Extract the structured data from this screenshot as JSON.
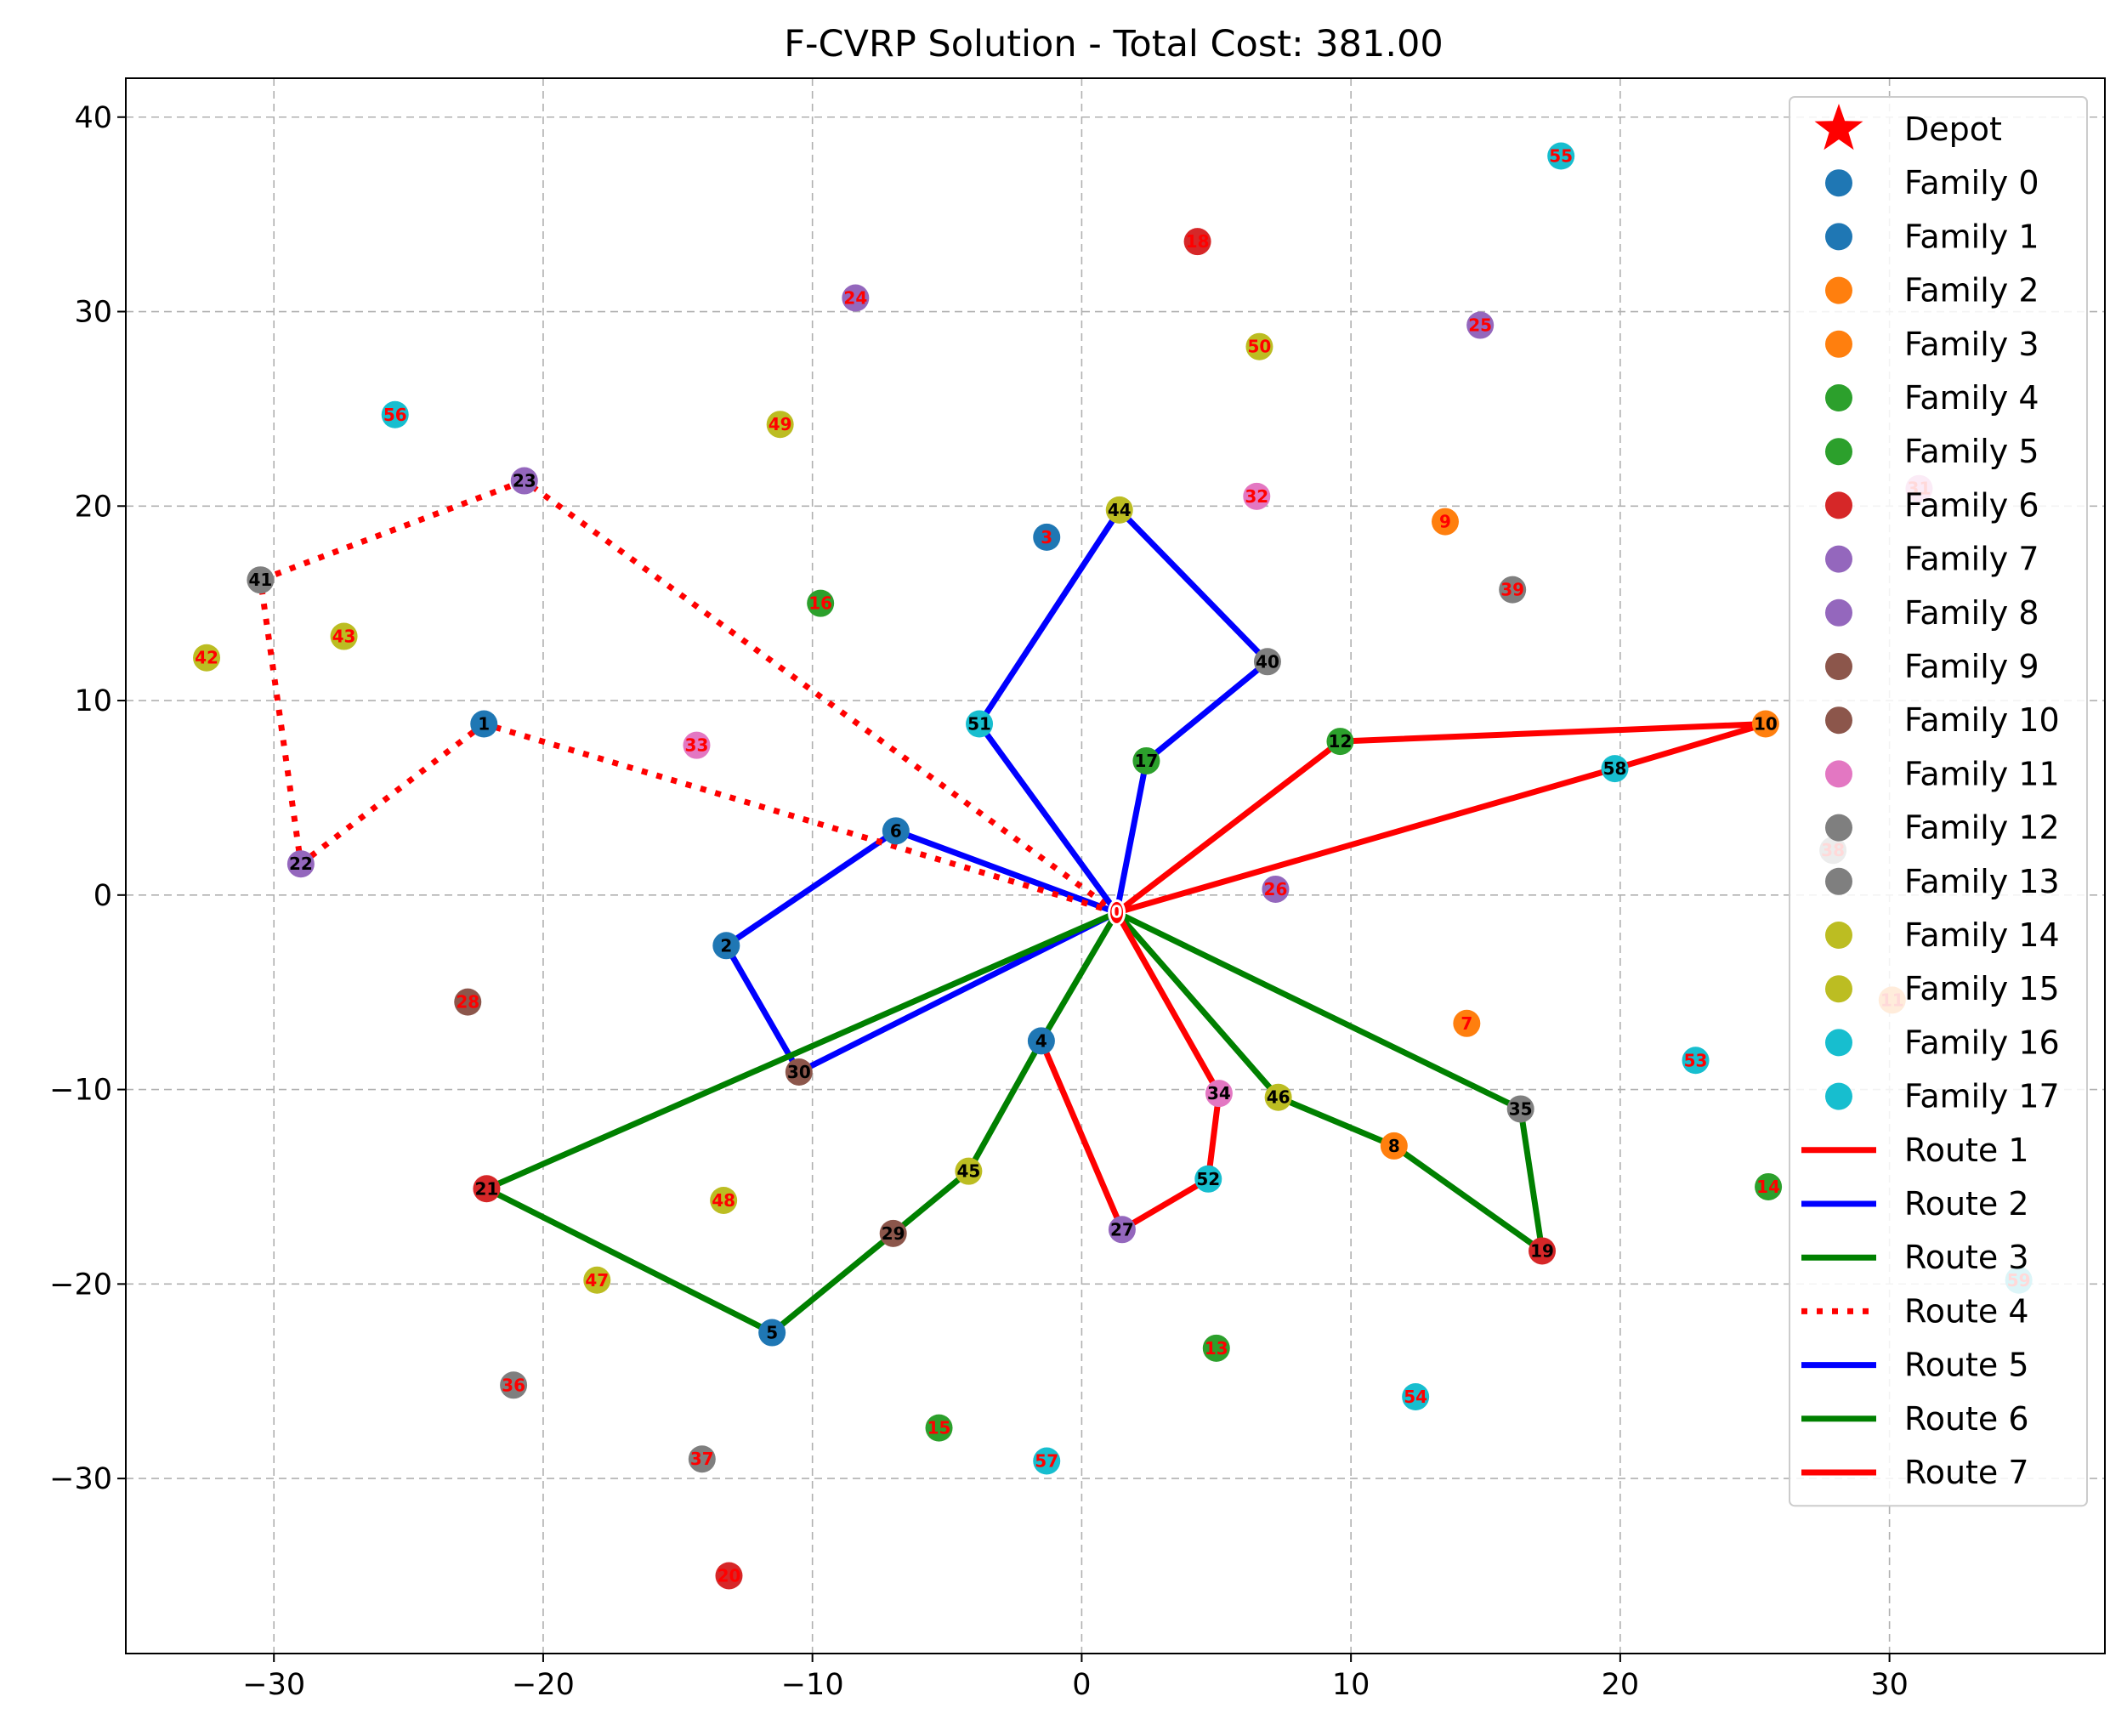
{
  "chart_data": {
    "type": "scatter",
    "title": "F-CVRP Solution - Total Cost: 381.00",
    "xlabel": "",
    "ylabel": "",
    "xlim": [
      -35.5,
      38.0
    ],
    "ylim": [
      -39.0,
      42.0
    ],
    "xticks": [
      -30,
      -20,
      -10,
      0,
      10,
      20,
      30
    ],
    "yticks": [
      -30,
      -20,
      -10,
      0,
      10,
      20,
      30,
      40
    ],
    "xtick_labels": [
      "−30",
      "−20",
      "−10",
      "0",
      "10",
      "20",
      "30"
    ],
    "ytick_labels": [
      "−30",
      "−20",
      "−10",
      "0",
      "10",
      "20",
      "30",
      "40"
    ],
    "grid": true,
    "legend_position": "top-right",
    "depot": {
      "label": "0",
      "x": 1.3,
      "y": -0.9,
      "color": "#ff0000"
    },
    "families": [
      {
        "name": "Family 0",
        "color": "#1f77b4"
      },
      {
        "name": "Family 1",
        "color": "#1f77b4"
      },
      {
        "name": "Family 2",
        "color": "#ff7f0e"
      },
      {
        "name": "Family 3",
        "color": "#ff7f0e"
      },
      {
        "name": "Family 4",
        "color": "#2ca02c"
      },
      {
        "name": "Family 5",
        "color": "#2ca02c"
      },
      {
        "name": "Family 6",
        "color": "#d62728"
      },
      {
        "name": "Family 7",
        "color": "#9467bd"
      },
      {
        "name": "Family 8",
        "color": "#9467bd"
      },
      {
        "name": "Family 9",
        "color": "#8c564b"
      },
      {
        "name": "Family 10",
        "color": "#8c564b"
      },
      {
        "name": "Family 11",
        "color": "#e377c2"
      },
      {
        "name": "Family 12",
        "color": "#7f7f7f"
      },
      {
        "name": "Family 13",
        "color": "#7f7f7f"
      },
      {
        "name": "Family 14",
        "color": "#bcbd22"
      },
      {
        "name": "Family 15",
        "color": "#bcbd22"
      },
      {
        "name": "Family 16",
        "color": "#17becf"
      },
      {
        "name": "Family 17",
        "color": "#17becf"
      }
    ],
    "nodes": [
      {
        "label": "1",
        "x": -22.2,
        "y": 8.8,
        "color": "#1f77b4",
        "visited": true
      },
      {
        "label": "2",
        "x": -13.2,
        "y": -2.6,
        "color": "#1f77b4",
        "visited": true
      },
      {
        "label": "3",
        "x": -1.3,
        "y": 18.4,
        "color": "#1f77b4",
        "visited": false
      },
      {
        "label": "4",
        "x": -1.5,
        "y": -7.5,
        "color": "#1f77b4",
        "visited": true
      },
      {
        "label": "5",
        "x": -11.5,
        "y": -22.5,
        "color": "#1f77b4",
        "visited": true
      },
      {
        "label": "6",
        "x": -6.9,
        "y": 3.3,
        "color": "#1f77b4",
        "visited": true
      },
      {
        "label": "7",
        "x": 14.3,
        "y": -6.6,
        "color": "#ff7f0e",
        "visited": false
      },
      {
        "label": "8",
        "x": 11.6,
        "y": -12.9,
        "color": "#ff7f0e",
        "visited": true
      },
      {
        "label": "9",
        "x": 13.5,
        "y": 19.2,
        "color": "#ff7f0e",
        "visited": false
      },
      {
        "label": "10",
        "x": 25.4,
        "y": 8.8,
        "color": "#ff7f0e",
        "visited": true
      },
      {
        "label": "11",
        "x": 30.1,
        "y": -5.4,
        "color": "#ff7f0e",
        "visited": false
      },
      {
        "label": "12",
        "x": 9.6,
        "y": 7.9,
        "color": "#2ca02c",
        "visited": true
      },
      {
        "label": "13",
        "x": 5.0,
        "y": -23.3,
        "color": "#2ca02c",
        "visited": false
      },
      {
        "label": "14",
        "x": 25.5,
        "y": -15.0,
        "color": "#2ca02c",
        "visited": false
      },
      {
        "label": "15",
        "x": -5.3,
        "y": -27.4,
        "color": "#2ca02c",
        "visited": false
      },
      {
        "label": "16",
        "x": -9.7,
        "y": 15.0,
        "color": "#2ca02c",
        "visited": false
      },
      {
        "label": "17",
        "x": 2.4,
        "y": 6.9,
        "color": "#2ca02c",
        "visited": true
      },
      {
        "label": "18",
        "x": 4.3,
        "y": 33.6,
        "color": "#d62728",
        "visited": false
      },
      {
        "label": "19",
        "x": 17.1,
        "y": -18.3,
        "color": "#d62728",
        "visited": true
      },
      {
        "label": "20",
        "x": -13.1,
        "y": -35.0,
        "color": "#d62728",
        "visited": false
      },
      {
        "label": "21",
        "x": -22.1,
        "y": -15.1,
        "color": "#d62728",
        "visited": true
      },
      {
        "label": "22",
        "x": -29.0,
        "y": 1.6,
        "color": "#9467bd",
        "visited": true
      },
      {
        "label": "23",
        "x": -20.7,
        "y": 21.3,
        "color": "#9467bd",
        "visited": true
      },
      {
        "label": "24",
        "x": -8.4,
        "y": 30.7,
        "color": "#9467bd",
        "visited": false
      },
      {
        "label": "25",
        "x": 14.8,
        "y": 29.3,
        "color": "#9467bd",
        "visited": false
      },
      {
        "label": "26",
        "x": 7.2,
        "y": 0.3,
        "color": "#9467bd",
        "visited": false
      },
      {
        "label": "27",
        "x": 1.5,
        "y": -17.2,
        "color": "#9467bd",
        "visited": true
      },
      {
        "label": "28",
        "x": -22.8,
        "y": -5.5,
        "color": "#8c564b",
        "visited": false
      },
      {
        "label": "29",
        "x": -7.0,
        "y": -17.4,
        "color": "#8c564b",
        "visited": true
      },
      {
        "label": "30",
        "x": -10.5,
        "y": -9.1,
        "color": "#8c564b",
        "visited": true
      },
      {
        "label": "31",
        "x": 31.1,
        "y": 20.9,
        "color": "#e377c2",
        "visited": false
      },
      {
        "label": "32",
        "x": 6.5,
        "y": 20.5,
        "color": "#e377c2",
        "visited": false
      },
      {
        "label": "33",
        "x": -14.3,
        "y": 7.7,
        "color": "#e377c2",
        "visited": false
      },
      {
        "label": "34",
        "x": 5.1,
        "y": -10.2,
        "color": "#e377c2",
        "visited": true
      },
      {
        "label": "35",
        "x": 16.3,
        "y": -11.0,
        "color": "#7f7f7f",
        "visited": true
      },
      {
        "label": "36",
        "x": -21.1,
        "y": -25.2,
        "color": "#7f7f7f",
        "visited": false
      },
      {
        "label": "37",
        "x": -14.1,
        "y": -29.0,
        "color": "#7f7f7f",
        "visited": false
      },
      {
        "label": "38",
        "x": 27.9,
        "y": 2.3,
        "color": "#7f7f7f",
        "visited": false
      },
      {
        "label": "39",
        "x": 16.0,
        "y": 15.7,
        "color": "#7f7f7f",
        "visited": false
      },
      {
        "label": "40",
        "x": 6.9,
        "y": 12.0,
        "color": "#7f7f7f",
        "visited": true
      },
      {
        "label": "41",
        "x": -30.5,
        "y": 16.2,
        "color": "#7f7f7f",
        "visited": true
      },
      {
        "label": "42",
        "x": -32.5,
        "y": 12.2,
        "color": "#bcbd22",
        "visited": false
      },
      {
        "label": "43",
        "x": -27.4,
        "y": 13.3,
        "color": "#bcbd22",
        "visited": false
      },
      {
        "label": "44",
        "x": 1.4,
        "y": 19.8,
        "color": "#bcbd22",
        "visited": true
      },
      {
        "label": "45",
        "x": -4.2,
        "y": -14.2,
        "color": "#bcbd22",
        "visited": true
      },
      {
        "label": "46",
        "x": 7.3,
        "y": -10.4,
        "color": "#bcbd22",
        "visited": true
      },
      {
        "label": "47",
        "x": -18.0,
        "y": -19.8,
        "color": "#bcbd22",
        "visited": false
      },
      {
        "label": "48",
        "x": -13.3,
        "y": -15.7,
        "color": "#bcbd22",
        "visited": false
      },
      {
        "label": "49",
        "x": -11.2,
        "y": 24.2,
        "color": "#bcbd22",
        "visited": false
      },
      {
        "label": "50",
        "x": 6.6,
        "y": 28.2,
        "color": "#bcbd22",
        "visited": false
      },
      {
        "label": "51",
        "x": -3.8,
        "y": 8.8,
        "color": "#17becf",
        "visited": true
      },
      {
        "label": "52",
        "x": 4.7,
        "y": -14.6,
        "color": "#17becf",
        "visited": true
      },
      {
        "label": "53",
        "x": 22.8,
        "y": -8.5,
        "color": "#17becf",
        "visited": false
      },
      {
        "label": "54",
        "x": 12.4,
        "y": -25.8,
        "color": "#17becf",
        "visited": false
      },
      {
        "label": "55",
        "x": 17.8,
        "y": 38.0,
        "color": "#17becf",
        "visited": false
      },
      {
        "label": "56",
        "x": -25.5,
        "y": 24.7,
        "color": "#17becf",
        "visited": false
      },
      {
        "label": "57",
        "x": -1.3,
        "y": -29.1,
        "color": "#17becf",
        "visited": false
      },
      {
        "label": "58",
        "x": 19.8,
        "y": 6.5,
        "color": "#17becf",
        "visited": true
      },
      {
        "label": "59",
        "x": 34.8,
        "y": -19.8,
        "color": "#17becf",
        "visited": false
      }
    ],
    "routes": [
      {
        "name": "Route 1",
        "color": "#ff0000",
        "style": "solid",
        "path": [
          "0",
          "12",
          "10",
          "58",
          "0"
        ]
      },
      {
        "name": "Route 2",
        "color": "#0000ff",
        "style": "solid",
        "path": [
          "0",
          "6",
          "2",
          "30",
          "0"
        ]
      },
      {
        "name": "Route 3",
        "color": "#008000",
        "style": "solid",
        "path": [
          "0",
          "46",
          "8",
          "19",
          "35",
          "0"
        ]
      },
      {
        "name": "Route 4",
        "color": "#ff0000",
        "style": "dotted",
        "path": [
          "0",
          "1",
          "22",
          "41",
          "23",
          "0"
        ]
      },
      {
        "name": "Route 5",
        "color": "#0000ff",
        "style": "solid",
        "path": [
          "0",
          "51",
          "44",
          "40",
          "17",
          "0"
        ]
      },
      {
        "name": "Route 6",
        "color": "#008000",
        "style": "solid",
        "path": [
          "0",
          "21",
          "5",
          "29",
          "45",
          "4",
          "0"
        ]
      },
      {
        "name": "Route 7",
        "color": "#ff0000",
        "style": "solid",
        "path": [
          "0",
          "34",
          "52",
          "27",
          "4"
        ]
      }
    ]
  }
}
